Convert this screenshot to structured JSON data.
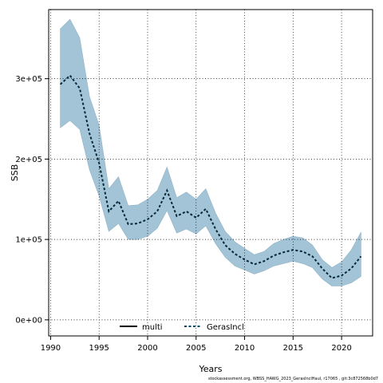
{
  "chart_data": {
    "type": "line",
    "xlabel": "Years",
    "ylabel": "SSB",
    "xlim": [
      1989.8,
      2023.2
    ],
    "ylim": [
      -20000,
      386000
    ],
    "xticks": [
      1990,
      1995,
      2000,
      2005,
      2010,
      2015,
      2020
    ],
    "yticks": [
      0,
      100000,
      200000,
      300000
    ],
    "ytick_labels": [
      "0e+00",
      "1e+05",
      "2e+05",
      "3e+05"
    ],
    "grid": true,
    "legend_position": "bottom-center",
    "legend": [
      {
        "name": "multi",
        "style": "solid",
        "color": "#000000"
      },
      {
        "name": "GerasIncl",
        "style": "dashed",
        "color": "#004a66"
      }
    ],
    "band_color": "#a3c4d6",
    "x": [
      1991,
      1992,
      1993,
      1994,
      1995,
      1996,
      1997,
      1998,
      1999,
      2000,
      2001,
      2002,
      2003,
      2004,
      2005,
      2006,
      2007,
      2008,
      2009,
      2010,
      2011,
      2012,
      2013,
      2014,
      2015,
      2016,
      2017,
      2018,
      2019,
      2020,
      2021,
      2022
    ],
    "series": [
      {
        "name": "GerasIncl",
        "values": [
          293000,
          304000,
          288000,
          232000,
          195000,
          135000,
          148000,
          119000,
          120000,
          125000,
          135000,
          161000,
          129000,
          135000,
          127000,
          138000,
          113000,
          93000,
          82000,
          75000,
          69000,
          73000,
          80000,
          84000,
          87000,
          85000,
          79000,
          64000,
          52000,
          55000,
          64000,
          79000
        ]
      }
    ],
    "band_upper": [
      362000,
      374000,
      351000,
      278000,
      242000,
      163000,
      178000,
      142000,
      143000,
      150000,
      161000,
      190000,
      152000,
      159000,
      150000,
      163000,
      133000,
      110000,
      97000,
      89000,
      81000,
      85000,
      95000,
      100000,
      104000,
      102000,
      93000,
      75000,
      65000,
      72000,
      87000,
      109000
    ],
    "band_lower": [
      239000,
      248000,
      237000,
      187000,
      154000,
      110000,
      120000,
      100000,
      100000,
      104000,
      114000,
      136000,
      108000,
      113000,
      107000,
      117000,
      95000,
      78000,
      67000,
      62000,
      57000,
      61000,
      67000,
      70000,
      73000,
      70000,
      65000,
      51000,
      42000,
      42000,
      46000,
      54000
    ]
  },
  "caption": "stockassessment.org, WBSS_HAWG_2023_GerasInclHaul, r17065 , git:3c872568b0d7"
}
